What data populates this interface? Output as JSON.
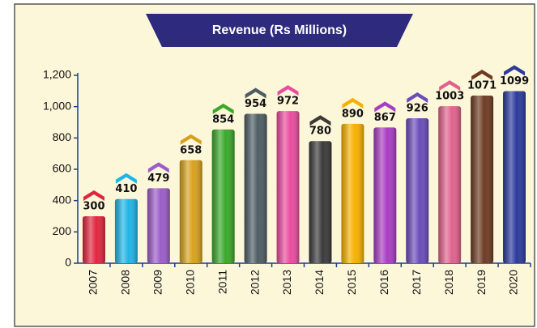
{
  "chart_data": {
    "type": "bar",
    "title": "Revenue (Rs Millions)",
    "categories": [
      "2007",
      "2008",
      "2009",
      "2010",
      "2011",
      "2012",
      "2013",
      "2014",
      "2015",
      "2016",
      "2017",
      "2018",
      "2019",
      "2020"
    ],
    "values": [
      300,
      410,
      479,
      658,
      854,
      954,
      972,
      780,
      890,
      867,
      926,
      1003,
      1071,
      1099
    ],
    "colors": [
      "#e0263f",
      "#1fb5e6",
      "#9b5cc8",
      "#d6a11e",
      "#3aa82a",
      "#4d5d63",
      "#ea4c9f",
      "#3a3a3a",
      "#f6b000",
      "#a93dc2",
      "#6b4cba",
      "#e0628c",
      "#6e3b22",
      "#2b3a9c"
    ],
    "ylim": [
      0,
      1200
    ],
    "yticks": [
      0,
      200,
      400,
      600,
      800,
      {
        "value": 1000,
        "label": "1,000"
      },
      {
        "value": 1200,
        "label": "1,200"
      }
    ]
  }
}
